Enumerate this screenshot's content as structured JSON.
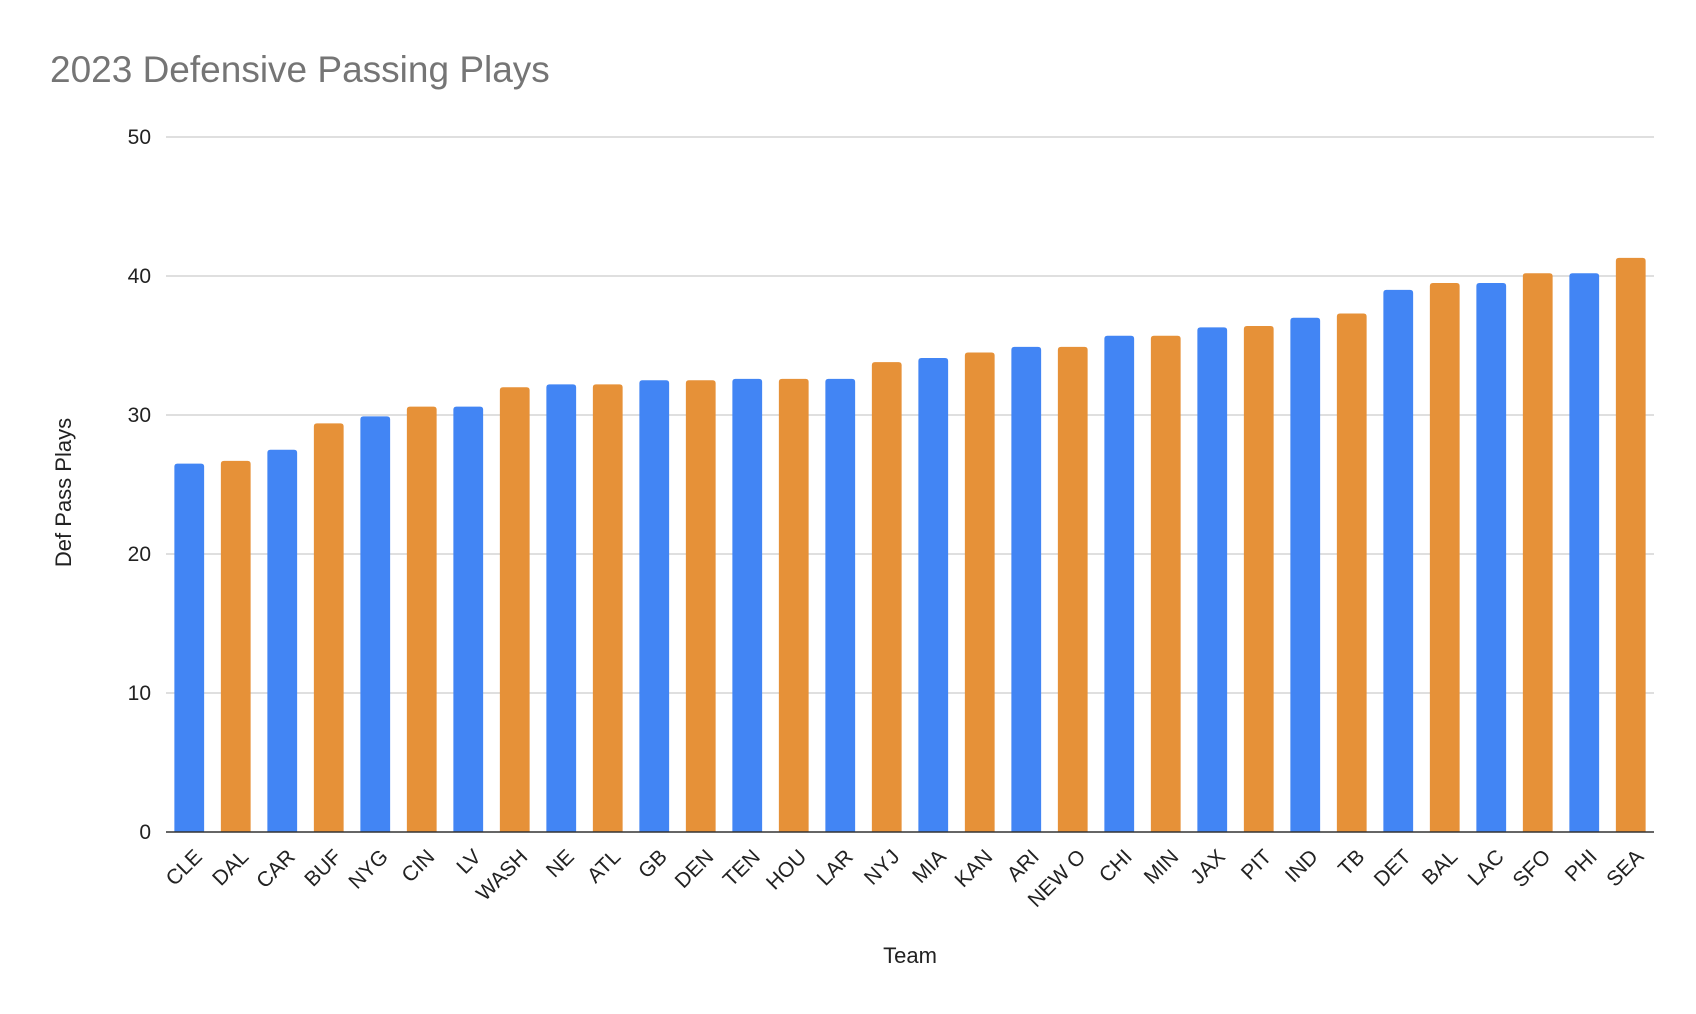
{
  "chart_data": {
    "type": "bar",
    "title": "2023 Defensive Passing Plays",
    "xlabel": "Team",
    "ylabel": "Def Pass Plays",
    "ylim": [
      0,
      50
    ],
    "yticks": [
      0,
      10,
      20,
      30,
      40,
      50
    ],
    "grid": true,
    "legend": "none",
    "colors": {
      "blue": "#4285f4",
      "orange": "#e69138"
    },
    "categories": [
      "CLE",
      "DAL",
      "CAR",
      "BUF",
      "NYG",
      "CIN",
      "LV",
      "WASH",
      "NE",
      "ATL",
      "GB",
      "DEN",
      "TEN",
      "HOU",
      "LAR",
      "NYJ",
      "MIA",
      "KAN",
      "ARI",
      "NEW O",
      "CHI",
      "MIN",
      "JAX",
      "PIT",
      "IND",
      "TB",
      "DET",
      "BAL",
      "LAC",
      "SFO",
      "PHI",
      "SEA"
    ],
    "values": [
      26.5,
      26.7,
      27.5,
      29.4,
      29.9,
      30.6,
      30.6,
      32.0,
      32.2,
      32.2,
      32.5,
      32.5,
      32.6,
      32.6,
      32.6,
      33.8,
      34.1,
      34.5,
      34.9,
      34.9,
      35.7,
      35.7,
      36.3,
      36.4,
      37.0,
      37.3,
      39.0,
      39.5,
      39.5,
      40.2,
      40.2,
      41.3
    ],
    "bar_colors": [
      "blue",
      "orange",
      "blue",
      "orange",
      "blue",
      "orange",
      "blue",
      "orange",
      "blue",
      "orange",
      "blue",
      "orange",
      "blue",
      "orange",
      "blue",
      "orange",
      "blue",
      "orange",
      "blue",
      "orange",
      "blue",
      "orange",
      "blue",
      "orange",
      "blue",
      "orange",
      "blue",
      "orange",
      "blue",
      "orange",
      "blue",
      "orange"
    ]
  }
}
